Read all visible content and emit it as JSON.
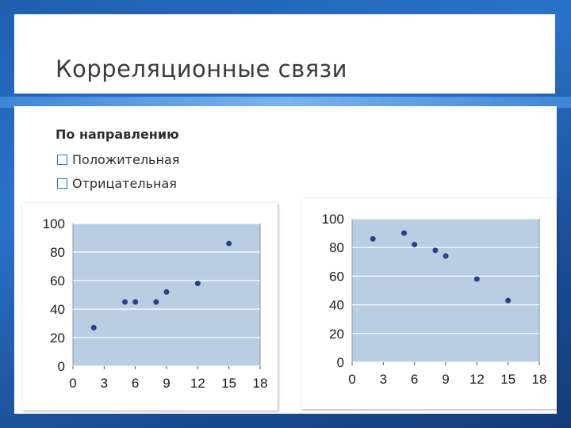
{
  "slide": {
    "title": "Корреляционные связи",
    "subheading": "По направлению",
    "bullets": [
      "Положительная",
      "Отрицательная"
    ],
    "bullet_icon": "checkbox-square-icon",
    "colors": {
      "accent": "#2d73c2",
      "plot_bg": "#b9cde3",
      "point": "#2c3f8a"
    }
  },
  "chart_data": [
    {
      "type": "scatter",
      "x_ticks": [
        "0",
        "3",
        "6",
        "9",
        "12",
        "15",
        "18"
      ],
      "y_ticks": [
        "0",
        "20",
        "40",
        "60",
        "80",
        "100"
      ],
      "xlim": [
        0,
        18
      ],
      "ylim": [
        0,
        100
      ],
      "grid": true,
      "points": [
        {
          "x": 2,
          "y": 27
        },
        {
          "x": 5,
          "y": 45
        },
        {
          "x": 6,
          "y": 45
        },
        {
          "x": 8,
          "y": 45
        },
        {
          "x": 9,
          "y": 52
        },
        {
          "x": 12,
          "y": 58
        },
        {
          "x": 15,
          "y": 86
        }
      ]
    },
    {
      "type": "scatter",
      "x_ticks": [
        "0",
        "3",
        "6",
        "9",
        "12",
        "15",
        "18"
      ],
      "y_ticks": [
        "0",
        "20",
        "40",
        "60",
        "80",
        "100"
      ],
      "xlim": [
        0,
        18
      ],
      "ylim": [
        0,
        100
      ],
      "grid": true,
      "points": [
        {
          "x": 2,
          "y": 86
        },
        {
          "x": 5,
          "y": 90
        },
        {
          "x": 6,
          "y": 82
        },
        {
          "x": 8,
          "y": 78
        },
        {
          "x": 9,
          "y": 74
        },
        {
          "x": 12,
          "y": 58
        },
        {
          "x": 15,
          "y": 43
        }
      ]
    }
  ]
}
